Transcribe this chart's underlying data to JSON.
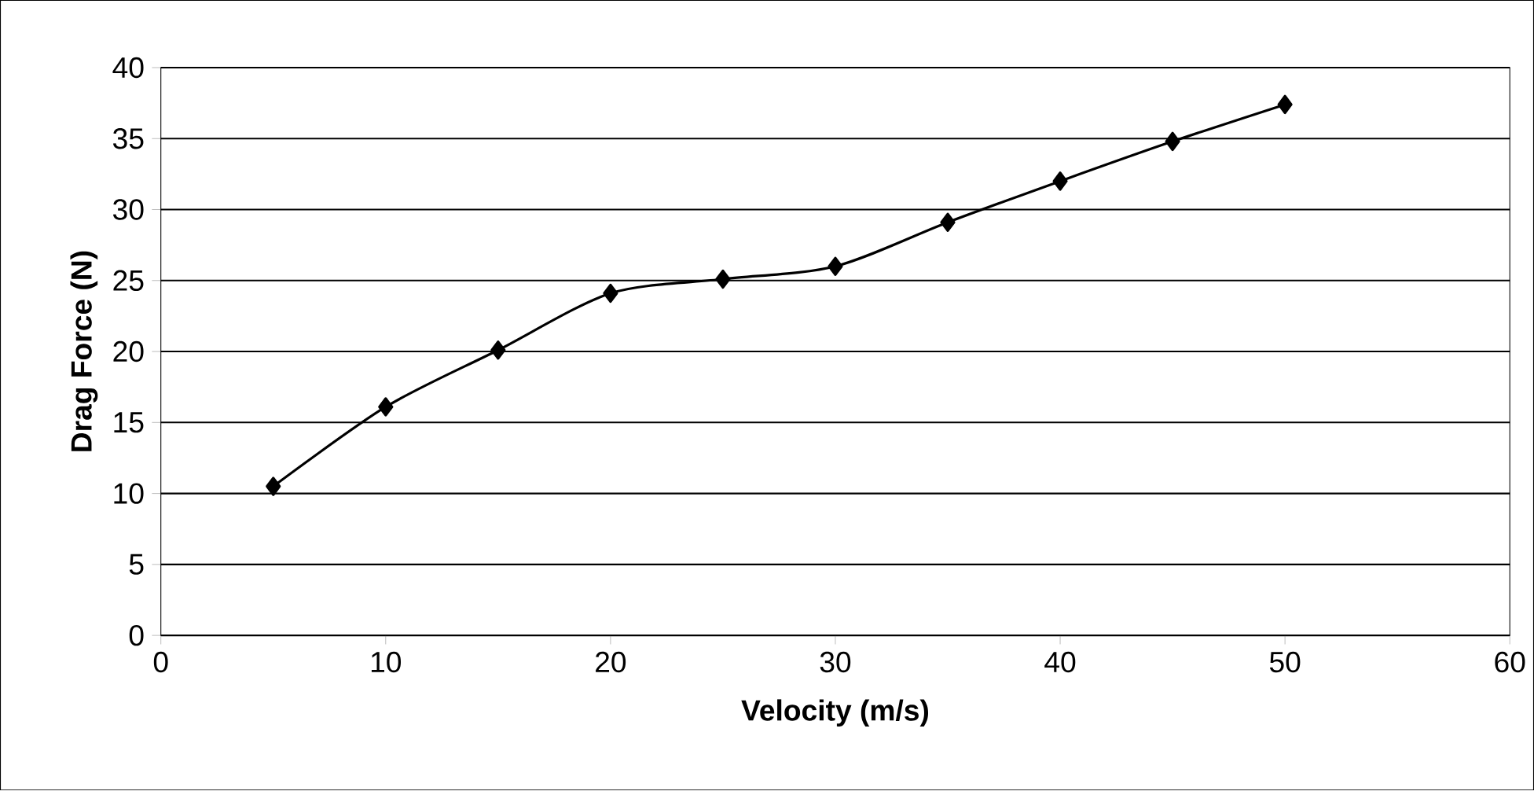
{
  "chart_data": {
    "type": "line",
    "xlabel": "Velocity (m/s)",
    "ylabel": "Drag Force (N)",
    "x": [
      5,
      10,
      15,
      20,
      25,
      30,
      35,
      40,
      45,
      50
    ],
    "series": [
      {
        "color": "#000000",
        "values": [
          10.5,
          16.1,
          20.1,
          24.1,
          25.1,
          26.0,
          29.1,
          32.0,
          34.8,
          37.4
        ]
      }
    ],
    "xlim": [
      0,
      60
    ],
    "xticks": [
      0,
      10,
      20,
      30,
      40,
      50,
      60
    ],
    "ylim": [
      0,
      40
    ],
    "yticks": [
      0,
      5,
      10,
      15,
      20,
      25,
      30,
      35,
      40
    ],
    "grid": "y",
    "marker": "diamond",
    "line_style": "solid"
  }
}
